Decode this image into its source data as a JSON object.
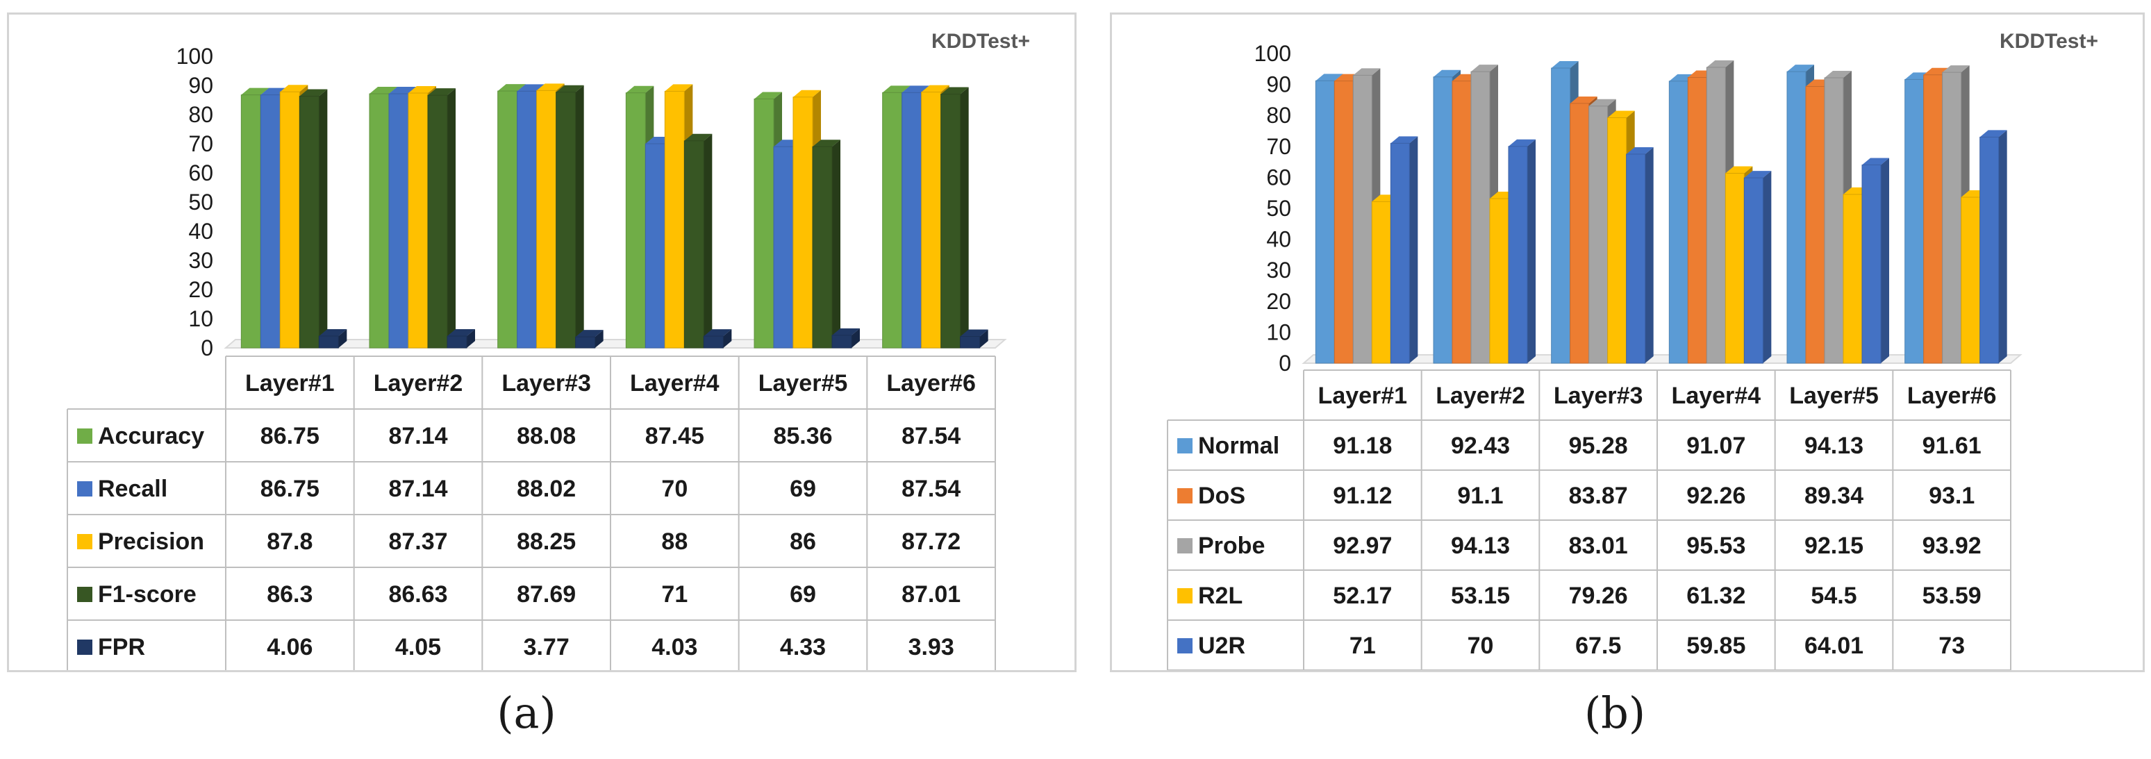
{
  "colors": {
    "green": "#70ad47",
    "blue": "#4472c4",
    "yellow": "#ffc000",
    "darkgreen": "#375623",
    "navy": "#203864",
    "lightblue": "#5b9bd5",
    "orange": "#ed7d31",
    "gray": "#a5a5a5"
  },
  "captions": {
    "a": "(a)",
    "b": "(b)"
  },
  "chart_data": [
    {
      "type": "bar",
      "annotation": "KDDTest+",
      "categories": [
        "Layer#1",
        "Layer#2",
        "Layer#3",
        "Layer#4",
        "Layer#5",
        "Layer#6"
      ],
      "ylim": [
        0,
        100
      ],
      "yticks": [
        "0",
        "10",
        "20",
        "30",
        "40",
        "50",
        "60",
        "70",
        "80",
        "90",
        "100"
      ],
      "grid": false,
      "legend": "data-table",
      "series": [
        {
          "name": "Accuracy",
          "color": "green",
          "values": [
            86.75,
            87.14,
            88.08,
            87.45,
            85.36,
            87.54
          ]
        },
        {
          "name": "Recall",
          "color": "blue",
          "values": [
            86.75,
            87.14,
            88.02,
            70,
            69,
            87.54
          ]
        },
        {
          "name": "Precision",
          "color": "yellow",
          "values": [
            87.8,
            87.37,
            88.25,
            88,
            86,
            87.72
          ]
        },
        {
          "name": "F1-score",
          "color": "darkgreen",
          "values": [
            86.3,
            86.63,
            87.69,
            71,
            69,
            87.01
          ]
        },
        {
          "name": "FPR",
          "color": "navy",
          "values": [
            4.06,
            4.05,
            3.77,
            4.03,
            4.33,
            3.93
          ]
        }
      ]
    },
    {
      "type": "bar",
      "annotation": "KDDTest+",
      "categories": [
        "Layer#1",
        "Layer#2",
        "Layer#3",
        "Layer#4",
        "Layer#5",
        "Layer#6"
      ],
      "ylim": [
        0,
        100
      ],
      "yticks": [
        "0",
        "10",
        "20",
        "30",
        "40",
        "50",
        "60",
        "70",
        "80",
        "90",
        "100"
      ],
      "grid": false,
      "legend": "data-table",
      "series": [
        {
          "name": "Normal",
          "color": "lightblue",
          "values": [
            91.18,
            92.43,
            95.28,
            91.07,
            94.13,
            91.61
          ]
        },
        {
          "name": "DoS",
          "color": "orange",
          "values": [
            91.12,
            91.1,
            83.87,
            92.26,
            89.34,
            93.1
          ]
        },
        {
          "name": "Probe",
          "color": "gray",
          "values": [
            92.97,
            94.13,
            83.01,
            95.53,
            92.15,
            93.92
          ]
        },
        {
          "name": "R2L",
          "color": "yellow",
          "values": [
            52.17,
            53.15,
            79.26,
            61.32,
            54.5,
            53.59
          ]
        },
        {
          "name": "U2R",
          "color": "blue",
          "values": [
            71,
            70,
            67.5,
            59.85,
            64.01,
            73
          ]
        }
      ]
    }
  ]
}
